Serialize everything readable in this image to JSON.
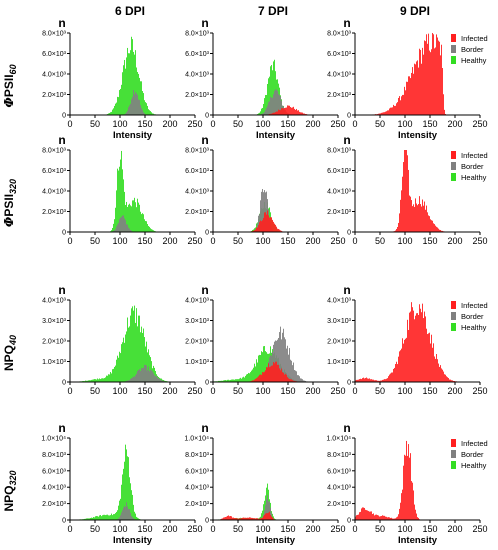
{
  "figure": {
    "columns": [
      "6 DPI",
      "7 DPI",
      "9 DPI"
    ],
    "xlabel": "Intensity",
    "y_letter": "n",
    "x_ticks": [
      "0",
      "50",
      "100",
      "150",
      "200",
      "250"
    ],
    "legend": [
      "Infected",
      "Border",
      "Healthy"
    ],
    "colors": {
      "Infected": "#ff2020",
      "Border": "#808080",
      "Healthy": "#33dd22",
      "axis": "#000000"
    }
  },
  "chart_data": [
    {
      "type": "bar",
      "row": "ΦPSII60",
      "row_label": {
        "phi": "Φ",
        "main": "PSII",
        "sub": "60"
      },
      "y_ticks": [
        "0",
        "2.0×10³",
        "4.0×10³",
        "6.0×10³",
        "8.0×10³"
      ],
      "ylim": [
        0,
        8000
      ],
      "xlim": [
        0,
        250
      ],
      "panels": [
        {
          "column": "6 DPI",
          "series": [
            {
              "name": "Healthy",
              "peaks": [
                {
                  "x": 122,
                  "sd": 16,
                  "height": 7000
                }
              ]
            },
            {
              "name": "Border",
              "peaks": [
                {
                  "x": 130,
                  "sd": 8,
                  "height": 2600
                }
              ]
            }
          ]
        },
        {
          "column": "7 DPI",
          "series": [
            {
              "name": "Healthy",
              "peaks": [
                {
                  "x": 120,
                  "sd": 11,
                  "height": 5000
                }
              ]
            },
            {
              "name": "Border",
              "peaks": [
                {
                  "x": 125,
                  "sd": 11,
                  "height": 2500
                }
              ]
            },
            {
              "name": "Infected",
              "peaks": [
                {
                  "x": 150,
                  "sd": 17,
                  "height": 900
                }
              ]
            }
          ]
        },
        {
          "column": "9 DPI",
          "legend": true,
          "series": [
            {
              "name": "Infected",
              "peaks": [
                {
                  "x": 155,
                  "sd": 38,
                  "height": 7500,
                  "cutoff": 172
                }
              ]
            }
          ]
        }
      ]
    },
    {
      "type": "bar",
      "row": "ΦPSII320",
      "row_label": {
        "phi": "Φ",
        "main": "PSII",
        "sub": "320"
      },
      "y_ticks": [
        "0",
        "2.0×10³",
        "4.0×10³",
        "6.0×10³",
        "8.0×10³"
      ],
      "ylim": [
        0,
        8000
      ],
      "xlim": [
        0,
        250
      ],
      "panels": [
        {
          "column": "6 DPI",
          "series": [
            {
              "name": "Healthy",
              "peaks": [
                {
                  "x": 100,
                  "sd": 6,
                  "height": 7500
                },
                {
                  "x": 128,
                  "sd": 16,
                  "height": 3200
                }
              ]
            },
            {
              "name": "Border",
              "peaks": [
                {
                  "x": 105,
                  "sd": 8,
                  "height": 1500
                }
              ]
            }
          ]
        },
        {
          "column": "7 DPI",
          "series": [
            {
              "name": "Border",
              "peaks": [
                {
                  "x": 102,
                  "sd": 7,
                  "height": 5000
                }
              ]
            },
            {
              "name": "Healthy",
              "peaks": [
                {
                  "x": 105,
                  "sd": 11,
                  "height": 2900
                }
              ]
            },
            {
              "name": "Infected",
              "peaks": [
                {
                  "x": 108,
                  "sd": 12,
                  "height": 1900
                }
              ]
            }
          ]
        },
        {
          "column": "9 DPI",
          "legend": true,
          "series": [
            {
              "name": "Infected",
              "peaks": [
                {
                  "x": 100,
                  "sd": 6,
                  "height": 7500
                },
                {
                  "x": 128,
                  "sd": 18,
                  "height": 3300
                }
              ]
            }
          ]
        }
      ]
    },
    {
      "type": "bar",
      "row": "NPQ40",
      "row_label": {
        "phi": "",
        "main": "NPQ",
        "sub": "40"
      },
      "y_ticks": [
        "0",
        "1.0×10³",
        "2.0×10³",
        "3.0×10³",
        "4.0×10³"
      ],
      "ylim": [
        0,
        4000
      ],
      "xlim": [
        0,
        250
      ],
      "panels": [
        {
          "column": "6 DPI",
          "series": [
            {
              "name": "Healthy",
              "peaks": [
                {
                  "x": 128,
                  "sd": 22,
                  "height": 3500
                },
                {
                  "x": 60,
                  "sd": 22,
                  "height": 150
                }
              ]
            },
            {
              "name": "Border",
              "peaks": [
                {
                  "x": 150,
                  "sd": 16,
                  "height": 750
                }
              ]
            }
          ]
        },
        {
          "column": "7 DPI",
          "series": [
            {
              "name": "Border",
              "peaks": [
                {
                  "x": 135,
                  "sd": 18,
                  "height": 2500
                }
              ]
            },
            {
              "name": "Healthy",
              "peaks": [
                {
                  "x": 110,
                  "sd": 22,
                  "height": 1700
                },
                {
                  "x": 45,
                  "sd": 25,
                  "height": 120
                }
              ]
            },
            {
              "name": "Infected",
              "peaks": [
                {
                  "x": 120,
                  "sd": 18,
                  "height": 1000
                }
              ]
            }
          ]
        },
        {
          "column": "9 DPI",
          "legend": true,
          "series": [
            {
              "name": "Infected",
              "peaks": [
                {
                  "x": 125,
                  "sd": 25,
                  "height": 4000
                },
                {
                  "x": 20,
                  "sd": 15,
                  "height": 200
                }
              ]
            }
          ]
        }
      ]
    },
    {
      "type": "bar",
      "row": "NPQ320",
      "row_label": {
        "phi": "",
        "main": "NPQ",
        "sub": "320"
      },
      "y_ticks": [
        "0",
        "2.0×10³",
        "4.0×10³",
        "6.0×10³",
        "8.0×10³",
        "1.0×10⁴"
      ],
      "ylim": [
        0,
        10000
      ],
      "xlim": [
        0,
        250
      ],
      "panels": [
        {
          "column": "6 DPI",
          "series": [
            {
              "name": "Healthy",
              "peaks": [
                {
                  "x": 113,
                  "sd": 8,
                  "height": 8300
                },
                {
                  "x": 80,
                  "sd": 28,
                  "height": 700
                }
              ]
            },
            {
              "name": "Border",
              "peaks": [
                {
                  "x": 112,
                  "sd": 7,
                  "height": 2000
                }
              ]
            }
          ]
        },
        {
          "column": "7 DPI",
          "series": [
            {
              "name": "Healthy",
              "peaks": [
                {
                  "x": 108,
                  "sd": 6,
                  "height": 4000
                },
                {
                  "x": 60,
                  "sd": 30,
                  "height": 250
                }
              ]
            },
            {
              "name": "Border",
              "peaks": [
                {
                  "x": 109,
                  "sd": 5,
                  "height": 2800
                }
              ]
            },
            {
              "name": "Infected",
              "peaks": [
                {
                  "x": 30,
                  "sd": 8,
                  "height": 500
                },
                {
                  "x": 70,
                  "sd": 20,
                  "height": 300
                },
                {
                  "x": 110,
                  "sd": 6,
                  "height": 1000
                }
              ]
            }
          ]
        },
        {
          "column": "9 DPI",
          "legend": true,
          "series": [
            {
              "name": "Infected",
              "peaks": [
                {
                  "x": 105,
                  "sd": 8,
                  "height": 10000
                },
                {
                  "x": 20,
                  "sd": 12,
                  "height": 1500
                },
                {
                  "x": 55,
                  "sd": 15,
                  "height": 500
                }
              ]
            }
          ]
        }
      ]
    }
  ]
}
